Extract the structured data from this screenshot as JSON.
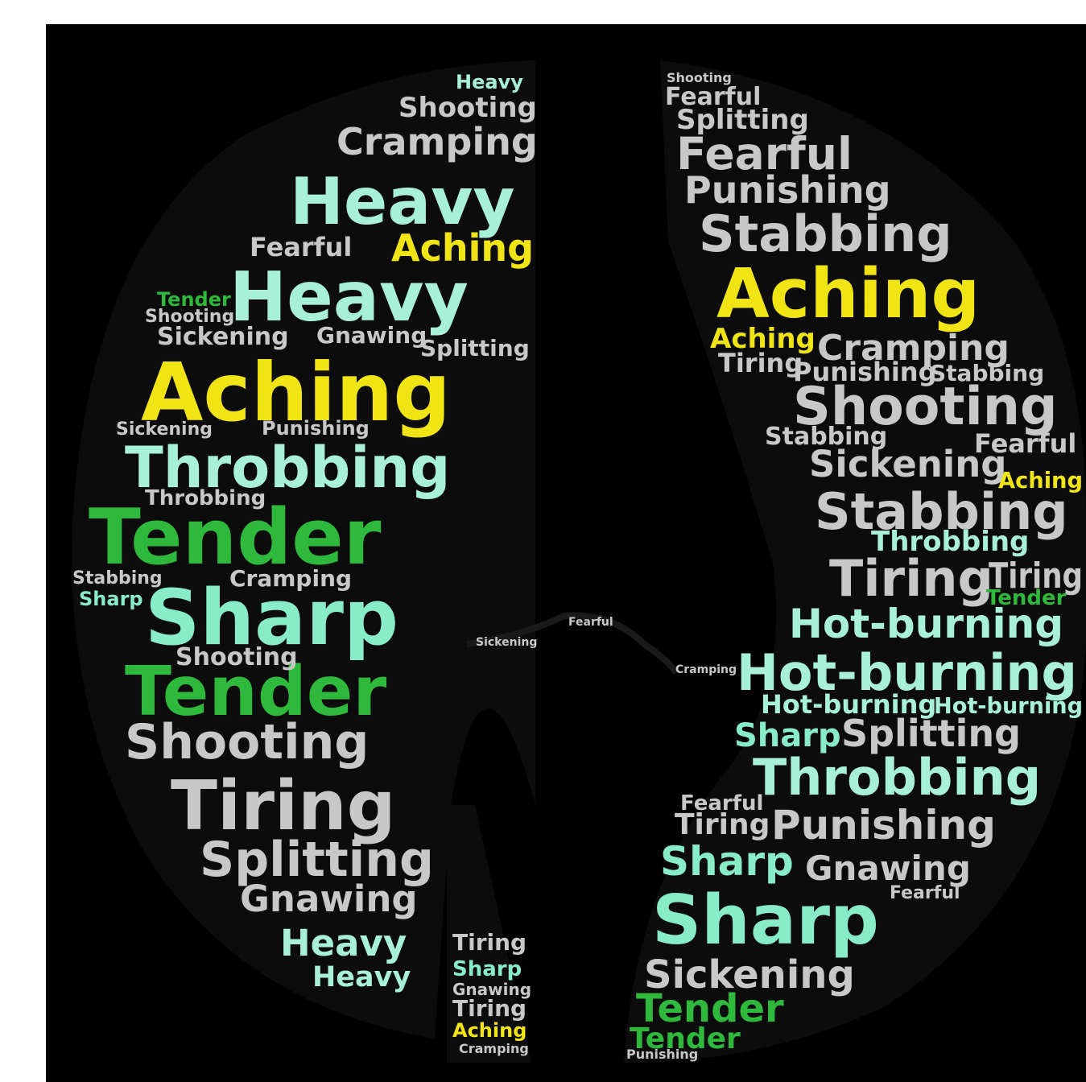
{
  "words": [
    {
      "text": "Heavy",
      "color": "#a8f0d8"
    },
    {
      "text": "Shooting",
      "color": "#c8c8c8"
    },
    {
      "text": "Cramping",
      "color": "#c8c8c8"
    },
    {
      "text": "Heavy",
      "color": "#a8f0d8"
    },
    {
      "text": "Aching",
      "color": "#f0e414"
    },
    {
      "text": "Fearful",
      "color": "#c8c8c8"
    },
    {
      "text": "Heavy",
      "color": "#a8f0d8"
    },
    {
      "text": "Sickening",
      "color": "#c8c8c8"
    },
    {
      "text": "Gnawing",
      "color": "#c8c8c8"
    },
    {
      "text": "Splitting",
      "color": "#c8c8c8"
    },
    {
      "text": "Aching",
      "color": "#f0e414"
    },
    {
      "text": "Throbbing",
      "color": "#a8f0d8"
    },
    {
      "text": "Tender",
      "color": "#2eb83c"
    },
    {
      "text": "Sharp",
      "color": "#88ecc8"
    },
    {
      "text": "Cramping",
      "color": "#c8c8c8"
    },
    {
      "text": "Tender",
      "color": "#2eb83c"
    },
    {
      "text": "Shooting",
      "color": "#c8c8c8"
    },
    {
      "text": "Tiring",
      "color": "#c8c8c8"
    },
    {
      "text": "Splitting",
      "color": "#c8c8c8"
    },
    {
      "text": "Gnawing",
      "color": "#c8c8c8"
    },
    {
      "text": "Heavy",
      "color": "#a8f0d8"
    },
    {
      "text": "Heavy",
      "color": "#a8f0d8"
    },
    {
      "text": "Throbbing",
      "color": "#c8c8c8"
    },
    {
      "text": "Shooting",
      "color": "#c8c8c8"
    },
    {
      "text": "Stabbing",
      "color": "#c8c8c8"
    },
    {
      "text": "Sharp",
      "color": "#88ecc8"
    },
    {
      "text": "Tender",
      "color": "#2eb83c"
    },
    {
      "text": "Shooting",
      "color": "#c8c8c8"
    },
    {
      "text": "Sickening",
      "color": "#c8c8c8"
    },
    {
      "text": "Punishing",
      "color": "#c8c8c8"
    },
    {
      "text": "Tiring",
      "color": "#c8c8c8"
    },
    {
      "text": "Sharp",
      "color": "#88ecc8"
    },
    {
      "text": "Gnawing",
      "color": "#c8c8c8"
    },
    {
      "text": "Tiring",
      "color": "#c8c8c8"
    },
    {
      "text": "Aching",
      "color": "#f0e414"
    },
    {
      "text": "Cramping",
      "color": "#c8c8c8"
    },
    {
      "text": "Fearful",
      "color": "#c8c8c8"
    },
    {
      "text": "Sickening",
      "color": "#c8c8c8"
    },
    {
      "text": "Cramping",
      "color": "#c8c8c8"
    },
    {
      "text": "Shooting",
      "color": "#c8c8c8"
    },
    {
      "text": "Fearful",
      "color": "#c8c8c8"
    },
    {
      "text": "Splitting",
      "color": "#c8c8c8"
    },
    {
      "text": "Fearful",
      "color": "#c8c8c8"
    },
    {
      "text": "Punishing",
      "color": "#c8c8c8"
    },
    {
      "text": "Stabbing",
      "color": "#c8c8c8"
    },
    {
      "text": "Aching",
      "color": "#f0e414"
    },
    {
      "text": "Aching",
      "color": "#f0e414"
    },
    {
      "text": "Cramping",
      "color": "#c8c8c8"
    },
    {
      "text": "Tiring",
      "color": "#c8c8c8"
    },
    {
      "text": "Punishing",
      "color": "#c8c8c8"
    },
    {
      "text": "Stabbing",
      "color": "#c8c8c8"
    },
    {
      "text": "Shooting",
      "color": "#c8c8c8"
    },
    {
      "text": "Stabbing",
      "color": "#c8c8c8"
    },
    {
      "text": "Fearful",
      "color": "#c8c8c8"
    },
    {
      "text": "Sickening",
      "color": "#c8c8c8"
    },
    {
      "text": "Aching",
      "color": "#f0e414"
    },
    {
      "text": "Stabbing",
      "color": "#c8c8c8"
    },
    {
      "text": "Throbbing",
      "color": "#a8f0d8"
    },
    {
      "text": "Tiring",
      "color": "#c8c8c8"
    },
    {
      "text": "Tiring",
      "color": "#c8c8c8"
    },
    {
      "text": "Tender",
      "color": "#2eb83c"
    },
    {
      "text": "Hot-burning",
      "color": "#a8f0d8"
    },
    {
      "text": "Hot-burning",
      "color": "#a8f0d8"
    },
    {
      "text": "Hot-burning",
      "color": "#a8f0d8"
    },
    {
      "text": "Hot-burning",
      "color": "#a8f0d8"
    },
    {
      "text": "Sharp",
      "color": "#88ecc8"
    },
    {
      "text": "Splitting",
      "color": "#c8c8c8"
    },
    {
      "text": "Throbbing",
      "color": "#a8f0d8"
    },
    {
      "text": "Fearful",
      "color": "#c8c8c8"
    },
    {
      "text": "Tiring",
      "color": "#c8c8c8"
    },
    {
      "text": "Punishing",
      "color": "#c8c8c8"
    },
    {
      "text": "Sharp",
      "color": "#88ecc8"
    },
    {
      "text": "Gnawing",
      "color": "#c8c8c8"
    },
    {
      "text": "Fearful",
      "color": "#c8c8c8"
    },
    {
      "text": "Sharp",
      "color": "#88ecc8"
    },
    {
      "text": "Sickening",
      "color": "#c8c8c8"
    },
    {
      "text": "Tender",
      "color": "#2eb83c"
    },
    {
      "text": "Tender",
      "color": "#2eb83c"
    },
    {
      "text": "Punishing",
      "color": "#c8c8c8"
    }
  ]
}
